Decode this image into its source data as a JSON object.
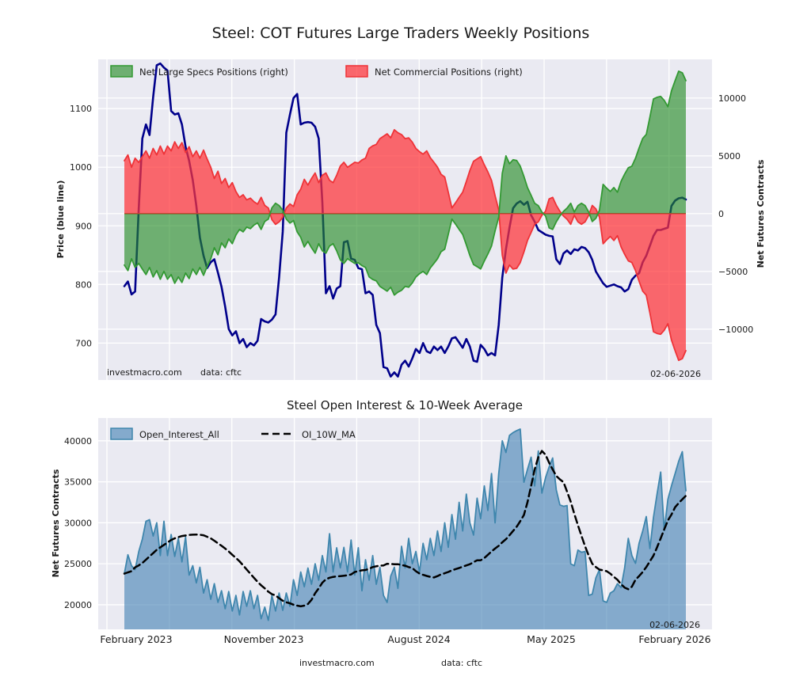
{
  "title": "Steel: COT Futures Large Traders Weekly Positions",
  "top_chart": {
    "legend": [
      {
        "label": "Net Large Specs Positions (right)",
        "color": "#228b22"
      },
      {
        "label": "Net Commercial Positions (right)",
        "color": "#ff3338"
      }
    ],
    "y_left_label": "Price (blue line)",
    "y_right_label": "Net Futures Contracts",
    "footer_left": "investmacro.com",
    "footer_data": "data: cftc",
    "date_label": "02-06-2026"
  },
  "bottom_chart": {
    "title": "Steel Open Interest & 10-Week Average",
    "legend": [
      {
        "label": "Open_Interest_All",
        "color": "#4682b4"
      },
      {
        "label": "OI_10W_MA",
        "color": "#000000"
      }
    ],
    "y_label": "Net Futures Contracts",
    "footer_left": "investmacro.com",
    "footer_data": "data: cftc",
    "date_label": "02-06-2026"
  },
  "colors": {
    "plot_background": "#eaeaf2",
    "grid": "#ffffff",
    "price_line": "#00008b",
    "specs_edge": "#339933",
    "specs_fill": "#228b22",
    "commercial_edge": "#ee3338",
    "commercial_fill": "#ff3338",
    "zero_line": "#ee3338",
    "oi_edge": "#3f86ad",
    "oi_fill": "#4682b4",
    "ma_line": "#000000"
  },
  "chart_data": [
    {
      "type": "area",
      "title": "Steel: COT Futures Large Traders Weekly Positions",
      "x_tick_labels": [],
      "y_left": {
        "label": "Price (blue line)",
        "ticks": [
          700,
          800,
          900,
          1000,
          1100
        ],
        "lim": [
          637,
          1184
        ]
      },
      "y_right": {
        "label": "Net Futures Contracts",
        "ticks": [
          -10000,
          -5000,
          0,
          5000,
          10000
        ],
        "lim": [
          -14400,
          13350
        ]
      },
      "legend_position": "upper left",
      "grid": true,
      "zero_line_axis": "right",
      "series": [
        {
          "name": "Price",
          "type": "line",
          "axis": "left",
          "color": "#00008b",
          "width": 2.6,
          "values": [
            797,
            805,
            783,
            788,
            930,
            1049,
            1073,
            1055,
            1120,
            1174,
            1177,
            1170,
            1165,
            1096,
            1090,
            1092,
            1073,
            1035,
            1011,
            978,
            934,
            880,
            849,
            828,
            838,
            843,
            820,
            796,
            762,
            724,
            713,
            720,
            700,
            707,
            693,
            700,
            696,
            704,
            741,
            737,
            735,
            740,
            749,
            812,
            890,
            1059,
            1090,
            1118,
            1125,
            1073,
            1076,
            1077,
            1076,
            1069,
            1049,
            940,
            785,
            797,
            776,
            793,
            797,
            872,
            874,
            844,
            842,
            828,
            826,
            785,
            788,
            782,
            731,
            717,
            659,
            657,
            643,
            650,
            643,
            663,
            670,
            660,
            674,
            690,
            683,
            700,
            686,
            683,
            694,
            688,
            694,
            683,
            694,
            708,
            710,
            701,
            692,
            707,
            694,
            670,
            668,
            697,
            690,
            679,
            683,
            679,
            731,
            812,
            860,
            897,
            930,
            938,
            942,
            936,
            941,
            918,
            907,
            893,
            889,
            885,
            883,
            882,
            843,
            835,
            853,
            858,
            852,
            860,
            858,
            864,
            862,
            855,
            842,
            822,
            812,
            802,
            796,
            798,
            800,
            797,
            795,
            788,
            792,
            808,
            815,
            819,
            838,
            849,
            866,
            883,
            893,
            893,
            895,
            897,
            934,
            943,
            947,
            948,
            945
          ]
        },
        {
          "name": "Net Commercial Positions (right)",
          "type": "area",
          "axis": "right",
          "color": "#ee3338",
          "fill": "#ff3338",
          "fill_alpha": 0.72,
          "width": 1.8,
          "baseline": 0,
          "values": [
            4580,
            5080,
            4020,
            4800,
            4430,
            4940,
            5430,
            4800,
            5640,
            5080,
            5850,
            5150,
            5850,
            5430,
            6210,
            5640,
            6140,
            5290,
            5790,
            4930,
            5430,
            4800,
            5500,
            4730,
            4020,
            3040,
            3670,
            2610,
            3040,
            2260,
            2680,
            1910,
            1410,
            1630,
            1190,
            1340,
            1030,
            820,
            1410,
            710,
            490,
            -520,
            -930,
            -720,
            -310,
            490,
            840,
            620,
            1630,
            2110,
            2970,
            2470,
            3040,
            3520,
            2680,
            3320,
            3520,
            2880,
            2680,
            3320,
            4120,
            4440,
            4020,
            4220,
            4440,
            4380,
            4640,
            4800,
            5640,
            5870,
            5990,
            6490,
            6700,
            6910,
            6560,
            7260,
            7000,
            6840,
            6490,
            6560,
            6180,
            5640,
            5360,
            5150,
            5430,
            4840,
            4440,
            4020,
            3400,
            3170,
            1850,
            490,
            930,
            1410,
            1850,
            2780,
            3740,
            4530,
            4730,
            4930,
            4220,
            3610,
            2880,
            1550,
            310,
            -3610,
            -5150,
            -4450,
            -4800,
            -4730,
            -4230,
            -3320,
            -2330,
            -1630,
            -920,
            -710,
            -140,
            210,
            1270,
            1410,
            720,
            210,
            -210,
            -490,
            -920,
            -140,
            -710,
            -920,
            -720,
            -140,
            710,
            410,
            -310,
            -2610,
            -2270,
            -1980,
            -2330,
            -1910,
            -2880,
            -3520,
            -4090,
            -4230,
            -4930,
            -5850,
            -6710,
            -7060,
            -8610,
            -10230,
            -10370,
            -10440,
            -10090,
            -9530,
            -10940,
            -11860,
            -12700,
            -12560,
            -11860
          ]
        },
        {
          "name": "Net Large Specs Positions (right)",
          "type": "area",
          "axis": "right",
          "color": "#339933",
          "fill": "#228b22",
          "fill_alpha": 0.62,
          "width": 1.8,
          "baseline": 0,
          "values": [
            -4450,
            -4930,
            -3900,
            -4660,
            -4300,
            -4800,
            -5270,
            -4660,
            -5480,
            -4930,
            -5680,
            -5000,
            -5680,
            -5270,
            -6030,
            -5480,
            -5960,
            -5140,
            -5620,
            -4790,
            -5270,
            -4660,
            -5340,
            -4590,
            -3900,
            -2950,
            -3560,
            -2530,
            -2950,
            -2190,
            -2600,
            -1850,
            -1370,
            -1580,
            -1160,
            -1300,
            -1000,
            -800,
            -1370,
            -685,
            -480,
            500,
            900,
            700,
            300,
            -480,
            -820,
            -600,
            -1580,
            -2050,
            -2880,
            -2400,
            -2950,
            -3420,
            -2600,
            -3220,
            -3420,
            -2800,
            -2600,
            -3220,
            -4000,
            -4310,
            -3900,
            -4100,
            -4310,
            -4250,
            -4500,
            -4660,
            -5480,
            -5700,
            -5820,
            -6300,
            -6500,
            -6710,
            -6370,
            -7050,
            -6800,
            -6640,
            -6300,
            -6370,
            -6000,
            -5480,
            -5200,
            -5000,
            -5270,
            -4700,
            -4310,
            -3900,
            -3300,
            -3080,
            -1800,
            -480,
            -900,
            -1370,
            -1800,
            -2700,
            -3630,
            -4400,
            -4590,
            -4790,
            -4100,
            -3500,
            -2800,
            -1500,
            -300,
            3500,
            5000,
            4320,
            4660,
            4590,
            4110,
            3220,
            2260,
            1580,
            890,
            685,
            140,
            -200,
            -1230,
            -1370,
            -700,
            -200,
            200,
            480,
            890,
            140,
            685,
            890,
            700,
            140,
            -685,
            -400,
            300,
            2530,
            2200,
            1920,
            2260,
            1850,
            2800,
            3420,
            3970,
            4110,
            4790,
            5680,
            6510,
            6850,
            8360,
            9930,
            10070,
            10140,
            9800,
            9250,
            10620,
            11510,
            12330,
            12190,
            11510
          ]
        }
      ]
    },
    {
      "type": "area",
      "title": "Steel Open Interest & 10-Week Average",
      "x_tick_labels": [
        "February 2023",
        "November 2023",
        "August 2024",
        "May 2025",
        "February 2026"
      ],
      "y_left": {
        "label": "Net Futures Contracts",
        "ticks": [
          20000,
          25000,
          30000,
          35000,
          40000
        ],
        "lim": [
          17000,
          42780
        ]
      },
      "legend_position": "upper left",
      "grid": true,
      "series": [
        {
          "name": "Open_Interest_All",
          "type": "area",
          "axis": "left",
          "color": "#3f86ad",
          "fill": "#4682b4",
          "fill_alpha": 0.62,
          "width": 1.8,
          "baseline": "bottom",
          "values": [
            23800,
            26100,
            24760,
            24290,
            26480,
            28000,
            30190,
            30380,
            28380,
            30000,
            26000,
            30190,
            26000,
            28570,
            25900,
            28100,
            25240,
            28290,
            23620,
            24760,
            22670,
            24570,
            21430,
            23050,
            20670,
            22570,
            20290,
            21710,
            19520,
            21620,
            19240,
            21140,
            18760,
            21620,
            19810,
            21710,
            19520,
            21140,
            18290,
            19710,
            18100,
            21140,
            19240,
            21430,
            19330,
            21430,
            19810,
            23050,
            21140,
            24000,
            22190,
            24480,
            22500,
            25000,
            23000,
            26000,
            24000,
            28670,
            24000,
            26950,
            24500,
            27000,
            24000,
            27900,
            23620,
            26950,
            21710,
            25500,
            23000,
            26000,
            22500,
            24570,
            21140,
            20290,
            23500,
            24570,
            22000,
            27140,
            24500,
            28100,
            25000,
            26500,
            24000,
            27500,
            25500,
            28100,
            26000,
            29000,
            26500,
            30000,
            27000,
            31000,
            28000,
            32500,
            29000,
            33500,
            30000,
            28500,
            33000,
            30500,
            34500,
            31500,
            36000,
            30000,
            36000,
            40000,
            38570,
            40670,
            41000,
            41240,
            41430,
            34950,
            36500,
            38000,
            34500,
            38760,
            33620,
            35500,
            36800,
            37900,
            34000,
            32190,
            32000,
            32100,
            25000,
            24760,
            26670,
            26400,
            26500,
            21140,
            21300,
            23300,
            24290,
            20480,
            20290,
            21430,
            21710,
            22570,
            22100,
            24500,
            28100,
            26000,
            25050,
            27500,
            29000,
            30760,
            26860,
            30670,
            33500,
            36190,
            29050,
            32860,
            34500,
            36000,
            37500,
            38670,
            33900
          ]
        },
        {
          "name": "OI_10W_MA",
          "type": "line",
          "axis": "left",
          "color": "#000000",
          "width": 2.5,
          "dash": [
            9,
            5
          ],
          "values": [
            23800,
            23950,
            24100,
            24570,
            24800,
            25100,
            25500,
            25900,
            26300,
            26700,
            27000,
            27300,
            27600,
            27900,
            28100,
            28250,
            28380,
            28450,
            28520,
            28550,
            28570,
            28540,
            28480,
            28300,
            28100,
            27810,
            27500,
            27200,
            26860,
            26500,
            26100,
            25710,
            25300,
            24800,
            24300,
            23800,
            23300,
            22800,
            22380,
            22000,
            21600,
            21300,
            21140,
            20800,
            20500,
            20300,
            20190,
            20000,
            19900,
            19810,
            19900,
            20100,
            20600,
            21400,
            22000,
            22700,
            23100,
            23300,
            23400,
            23450,
            23500,
            23550,
            23600,
            23700,
            24000,
            24100,
            24200,
            24240,
            24400,
            24600,
            24700,
            24760,
            24800,
            25000,
            24980,
            24950,
            24950,
            24850,
            24760,
            24600,
            24480,
            24100,
            23810,
            23650,
            23520,
            23400,
            23330,
            23500,
            23710,
            23850,
            24000,
            24200,
            24350,
            24480,
            24650,
            24800,
            24950,
            25200,
            25430,
            25430,
            25700,
            26100,
            26500,
            26860,
            27200,
            27620,
            28000,
            28480,
            29000,
            29520,
            30200,
            30950,
            32500,
            34500,
            36500,
            38000,
            38760,
            38300,
            37330,
            36500,
            35710,
            35300,
            34950,
            33800,
            32570,
            31100,
            29710,
            28400,
            27140,
            26000,
            25000,
            24600,
            24290,
            24200,
            24100,
            23800,
            23400,
            23050,
            22500,
            22100,
            21900,
            22200,
            23050,
            23500,
            24000,
            24600,
            25300,
            26000,
            27000,
            28100,
            29200,
            30290,
            31000,
            31900,
            32400,
            32860,
            33300
          ]
        }
      ]
    }
  ]
}
